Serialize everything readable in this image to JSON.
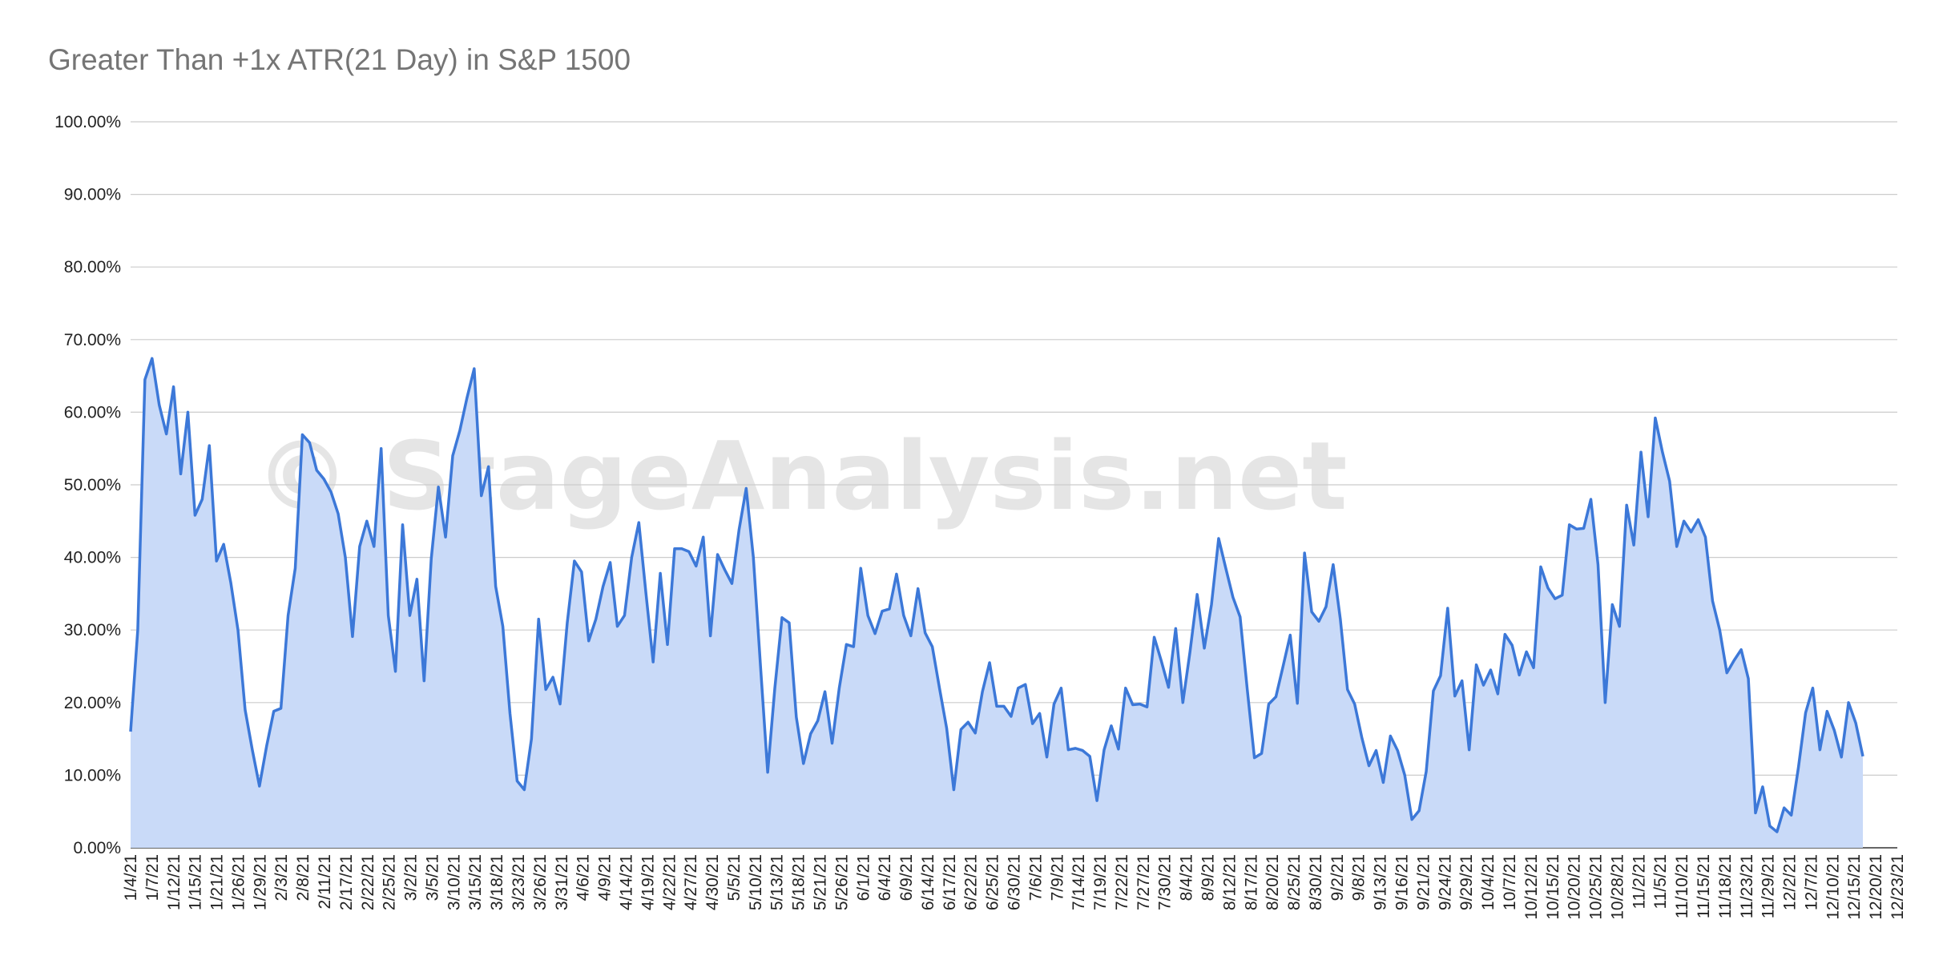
{
  "chart_data": {
    "type": "area",
    "title": "Greater Than +1x ATR(21 Day) in S&P 1500",
    "watermark": "© StageAnalysis.net",
    "xlabel": "",
    "ylabel": "",
    "ylim": [
      0,
      100
    ],
    "yticks": [
      "0.00%",
      "10.00%",
      "20.00%",
      "30.00%",
      "40.00%",
      "50.00%",
      "60.00%",
      "70.00%",
      "80.00%",
      "90.00%",
      "100.00%"
    ],
    "xticks": [
      "1/4/21",
      "1/7/21",
      "1/12/21",
      "1/15/21",
      "1/21/21",
      "1/26/21",
      "1/29/21",
      "2/3/21",
      "2/8/21",
      "2/11/21",
      "2/17/21",
      "2/22/21",
      "2/25/21",
      "3/2/21",
      "3/5/21",
      "3/10/21",
      "3/15/21",
      "3/18/21",
      "3/23/21",
      "3/26/21",
      "3/31/21",
      "4/6/21",
      "4/9/21",
      "4/14/21",
      "4/19/21",
      "4/22/21",
      "4/27/21",
      "4/30/21",
      "5/5/21",
      "5/10/21",
      "5/13/21",
      "5/18/21",
      "5/21/21",
      "5/26/21",
      "6/1/21",
      "6/4/21",
      "6/9/21",
      "6/14/21",
      "6/17/21",
      "6/22/21",
      "6/25/21",
      "6/30/21",
      "7/6/21",
      "7/9/21",
      "7/14/21",
      "7/19/21",
      "7/22/21",
      "7/27/21",
      "7/30/21",
      "8/4/21",
      "8/9/21",
      "8/12/21",
      "8/17/21",
      "8/20/21",
      "8/25/21",
      "8/30/21",
      "9/2/21",
      "9/8/21",
      "9/13/21",
      "9/16/21",
      "9/21/21",
      "9/24/21",
      "9/29/21",
      "10/4/21",
      "10/7/21",
      "10/12/21",
      "10/15/21",
      "10/20/21",
      "10/25/21",
      "10/28/21",
      "11/2/21",
      "11/5/21",
      "11/10/21",
      "11/15/21",
      "11/18/21",
      "11/23/21",
      "11/29/21",
      "12/2/21",
      "12/7/21",
      "12/10/21",
      "12/15/21",
      "12/20/21",
      "12/23/21"
    ],
    "series": [
      {
        "color": "#3c78d8",
        "fill": "#c9daf8",
        "values": [
          16,
          30,
          64.5,
          67.4,
          61,
          57,
          63.5,
          51.5,
          60,
          45.8,
          48,
          55.4,
          39.5,
          41.8,
          36.5,
          30,
          19,
          13.5,
          8.5,
          14,
          18.8,
          19.2,
          32,
          38.5,
          56.9,
          55.8,
          52,
          50.8,
          49,
          46,
          40,
          29.1,
          41.5,
          45,
          41.5,
          55,
          32,
          24.3,
          44.5,
          32,
          37,
          23,
          39.8,
          49.7,
          42.8,
          54,
          57.5,
          62,
          66,
          48.5,
          52.5,
          36,
          30.5,
          18.5,
          9.2,
          8,
          15,
          31.5,
          21.8,
          23.5,
          19.8,
          31,
          39.5,
          38,
          28.5,
          31.5,
          36,
          39.3,
          30.5,
          32,
          40,
          44.8,
          35,
          25.6,
          37.8,
          28,
          41.2,
          41.2,
          40.8,
          38.8,
          42.8,
          29.2,
          40.4,
          38.3,
          36.4,
          43.8,
          49.5,
          40,
          25,
          10.4,
          22,
          31.7,
          31,
          18,
          11.6,
          15.7,
          17.5,
          21.5,
          14.4,
          22,
          28,
          27.7,
          38.5,
          32,
          29.5,
          32.6,
          32.9,
          37.7,
          32,
          29.2,
          35.7,
          29.6,
          27.7,
          22,
          16.5,
          8,
          16.3,
          17.3,
          15.8,
          21.5,
          25.5,
          19.5,
          19.5,
          18.1,
          22,
          22.5,
          17.1,
          18.5,
          12.5,
          19.8,
          22,
          13.5,
          13.7,
          13.4,
          12.6,
          6.5,
          13.5,
          16.8,
          13.6,
          22,
          19.7,
          19.8,
          19.4,
          29,
          25.7,
          22.1,
          30.2,
          20,
          27,
          34.9,
          27.5,
          33.5,
          42.6,
          38.5,
          34.5,
          31.8,
          21.8,
          12.4,
          13,
          19.8,
          20.8,
          25,
          29.3,
          19.9,
          40.6,
          32.5,
          31.2,
          33.2,
          39,
          31.5,
          21.8,
          19.8,
          15.2,
          11.3,
          13.4,
          9,
          15.4,
          13.4,
          10,
          3.9,
          5.1,
          10.5,
          21.6,
          23.7,
          33,
          20.9,
          23,
          13.5,
          25.2,
          22.4,
          24.5,
          21.2,
          29.4,
          27.9,
          23.8,
          27,
          24.8,
          38.7,
          35.8,
          34.3,
          34.8,
          44.5,
          43.9,
          44,
          48,
          39,
          20,
          33.5,
          30.5,
          47.2,
          41.7,
          54.5,
          45.6,
          59.2,
          54.5,
          50.5,
          41.5,
          45,
          43.5,
          45.2,
          42.8,
          34,
          30,
          24.1,
          25.8,
          27.3,
          23.3,
          4.8,
          8.4,
          3,
          2.2,
          5.5,
          4.5,
          11.1,
          18.6,
          22,
          13.5,
          18.8,
          16.2,
          12.5,
          20,
          17.2,
          12.6
        ]
      }
    ],
    "grid": true,
    "legend": "none"
  }
}
